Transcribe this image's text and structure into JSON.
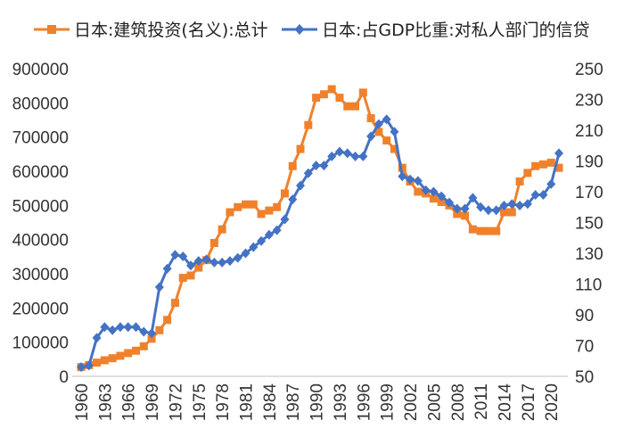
{
  "chart_data": {
    "type": "line",
    "legend": {
      "position": "top"
    },
    "x": [
      1960,
      1961,
      1962,
      1963,
      1964,
      1965,
      1966,
      1967,
      1968,
      1969,
      1970,
      1971,
      1972,
      1973,
      1974,
      1975,
      1976,
      1977,
      1978,
      1979,
      1980,
      1981,
      1982,
      1983,
      1984,
      1985,
      1986,
      1987,
      1988,
      1989,
      1990,
      1991,
      1992,
      1993,
      1994,
      1995,
      1996,
      1997,
      1998,
      1999,
      2000,
      2001,
      2002,
      2003,
      2004,
      2005,
      2006,
      2007,
      2008,
      2009,
      2010,
      2011,
      2012,
      2013,
      2014,
      2015,
      2016,
      2017,
      2018,
      2019,
      2020,
      2021
    ],
    "x_tick_labels": [
      "1960",
      "1963",
      "1966",
      "1969",
      "1972",
      "1975",
      "1978",
      "1981",
      "1984",
      "1987",
      "1990",
      "1993",
      "1996",
      "1999",
      "2002",
      "2005",
      "2008",
      "2011",
      "2014",
      "2017",
      "2020"
    ],
    "left_axis": {
      "ylim": [
        0,
        900000
      ],
      "ticks": [
        "0",
        "100000",
        "200000",
        "300000",
        "400000",
        "500000",
        "600000",
        "700000",
        "800000",
        "900000"
      ]
    },
    "right_axis": {
      "ylim": [
        50,
        250
      ],
      "ticks": [
        "50",
        "70",
        "90",
        "110",
        "130",
        "150",
        "170",
        "190",
        "210",
        "230",
        "250"
      ]
    },
    "grid": false,
    "series": [
      {
        "name": "日本:建筑投资(名义):总计",
        "axis": "left",
        "color": "#F0812B",
        "marker": "square",
        "values": [
          27000,
          33000,
          40000,
          47000,
          53000,
          60000,
          68000,
          75000,
          88000,
          110000,
          135000,
          165000,
          215000,
          288000,
          295000,
          318000,
          340000,
          390000,
          430000,
          480000,
          495000,
          503000,
          503000,
          475000,
          485000,
          495000,
          535000,
          615000,
          665000,
          735000,
          815000,
          825000,
          840000,
          815000,
          790000,
          790000,
          830000,
          755000,
          715000,
          690000,
          665000,
          610000,
          570000,
          540000,
          535000,
          520000,
          510000,
          500000,
          475000,
          470000,
          430000,
          425000,
          425000,
          425000,
          480000,
          480000,
          570000,
          595000,
          615000,
          620000,
          625000,
          610000
        ]
      },
      {
        "name": "日本:占GDP比重:对私人部门的信贷",
        "axis": "right",
        "color": "#4472C4",
        "marker": "diamond",
        "values": [
          56,
          57,
          75,
          82,
          80,
          82,
          82,
          82,
          79,
          78,
          108,
          120,
          129,
          128,
          122,
          125,
          126,
          124,
          124,
          125,
          127,
          130,
          134,
          138,
          142,
          145,
          152,
          165,
          174,
          182,
          187,
          187,
          193,
          196,
          195,
          193,
          193,
          206,
          214,
          217,
          209,
          180,
          178,
          177,
          171,
          170,
          167,
          163,
          159,
          159,
          166,
          160,
          158,
          158,
          161,
          162,
          161,
          162,
          168,
          168,
          175,
          195
        ]
      }
    ]
  }
}
